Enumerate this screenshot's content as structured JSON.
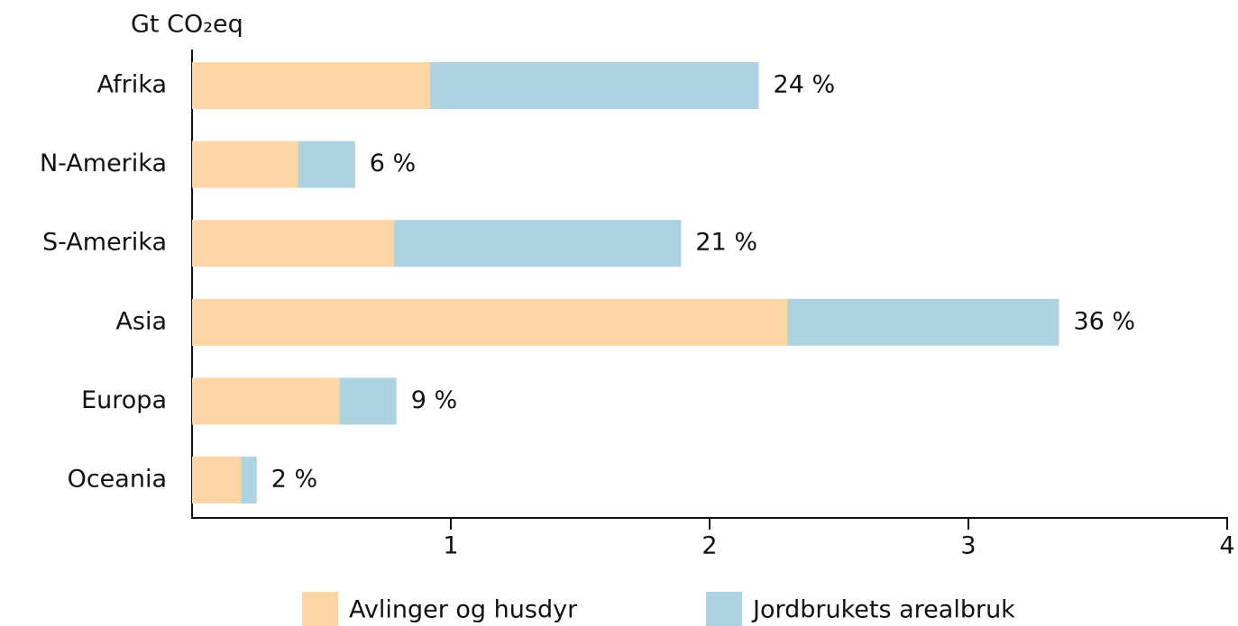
{
  "chart_data": {
    "type": "stacked_barh",
    "y_axis_label": "Gt CO₂eq",
    "categories": [
      "Afrika",
      "N-Amerika",
      "S-Amerika",
      "Asia",
      "Europa",
      "Oceania"
    ],
    "series": [
      {
        "name": "Avlinger og husdyr",
        "color": "#fbd5a5",
        "values": [
          0.92,
          0.41,
          0.78,
          2.3,
          0.57,
          0.19
        ]
      },
      {
        "name": "Jordbrukets arealbruk",
        "color": "#aed3e0",
        "values": [
          1.27,
          0.22,
          1.11,
          1.05,
          0.22,
          0.06
        ]
      }
    ],
    "annotations": [
      "24 %",
      "6 %",
      "21 %",
      "36 %",
      "9 %",
      "2 %"
    ],
    "xlim": [
      0,
      4
    ],
    "xticks": [
      1,
      2,
      3,
      4
    ]
  }
}
